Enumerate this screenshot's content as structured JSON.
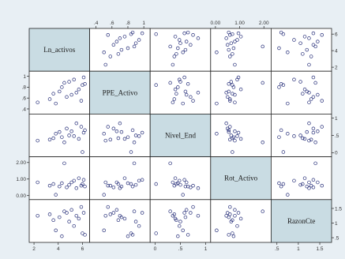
{
  "chart_data": {
    "type": "scatter",
    "subtype": "scatterplot-matrix",
    "variables": [
      "Ln_activos",
      "PPE_Activo",
      "Nivel_End",
      "Rot_Activo",
      "RazonCte"
    ],
    "axes": {
      "Ln_activos": {
        "range": [
          1.8,
          6.4
        ],
        "ticks": [
          {
            "v": 2,
            "t": "2"
          },
          {
            "v": 4,
            "t": "4"
          },
          {
            "v": 6,
            "t": "6"
          }
        ],
        "tick_side": "bottom"
      },
      "PPE_Activo": {
        "range": [
          0.35,
          1.05
        ],
        "ticks": [
          {
            "v": 0.4,
            "t": ".4"
          },
          {
            "v": 0.6,
            "t": ".6"
          },
          {
            "v": 0.8,
            "t": ".8"
          },
          {
            "v": 1.0,
            "t": "1"
          }
        ],
        "tick_side": "top"
      },
      "Nivel_End": {
        "range": [
          -0.05,
          1.05
        ],
        "ticks": [
          {
            "v": 0,
            "t": "0"
          },
          {
            "v": 0.5,
            "t": ".5"
          },
          {
            "v": 1,
            "t": "1"
          }
        ],
        "tick_side": "bottom"
      },
      "Rot_Activo": {
        "range": [
          -0.1,
          2.2
        ],
        "ticks": [
          {
            "v": 0,
            "t": "0.00"
          },
          {
            "v": 1,
            "t": "1.00"
          },
          {
            "v": 2,
            "t": "2.00"
          }
        ],
        "tick_side": "top"
      },
      "RazonCte": {
        "range": [
          0.42,
          1.72
        ],
        "ticks": [
          {
            "v": 0.5,
            "t": ".5"
          },
          {
            "v": 1.0,
            "t": "1"
          },
          {
            "v": 1.5,
            "t": "1.5"
          }
        ],
        "tick_side": "bottom"
      }
    },
    "observations": [
      {
        "Ln_activos": 2.3,
        "PPE_Activo": 0.52,
        "Nivel_End": 0.35,
        "Rot_Activo": 0.8,
        "RazonCte": 1.25
      },
      {
        "Ln_activos": 3.3,
        "PPE_Activo": 0.58,
        "Nivel_End": 0.38,
        "Rot_Activo": 0.6,
        "RazonCte": 1.3
      },
      {
        "Ln_activos": 3.6,
        "PPE_Activo": 0.68,
        "Nivel_End": 0.42,
        "Rot_Activo": 0.7,
        "RazonCte": 1.1
      },
      {
        "Ln_activos": 3.8,
        "PPE_Activo": 0.5,
        "Nivel_End": 0.55,
        "Rot_Activo": 0.05,
        "RazonCte": 0.75
      },
      {
        "Ln_activos": 4.1,
        "PPE_Activo": 0.72,
        "Nivel_End": 0.6,
        "Rot_Activo": 0.55,
        "RazonCte": 1.2
      },
      {
        "Ln_activos": 4.3,
        "PPE_Activo": 0.8,
        "Nivel_End": 0.45,
        "Rot_Activo": 0.75,
        "RazonCte": 0.55
      },
      {
        "Ln_activos": 4.5,
        "PPE_Activo": 0.88,
        "Nivel_End": 0.3,
        "Rot_Activo": 1.95,
        "RazonCte": 1.4
      },
      {
        "Ln_activos": 4.7,
        "PPE_Activo": 0.62,
        "Nivel_End": 0.7,
        "Rot_Activo": 0.5,
        "RazonCte": 1.35
      },
      {
        "Ln_activos": 4.9,
        "PPE_Activo": 0.9,
        "Nivel_End": 0.5,
        "Rot_Activo": 0.65,
        "RazonCte": 1.05
      },
      {
        "Ln_activos": 5.1,
        "PPE_Activo": 0.66,
        "Nivel_End": 0.62,
        "Rot_Activo": 0.8,
        "RazonCte": 1.45
      },
      {
        "Ln_activos": 5.3,
        "PPE_Activo": 0.94,
        "Nivel_End": 0.48,
        "Rot_Activo": 0.9,
        "RazonCte": 0.9
      },
      {
        "Ln_activos": 5.5,
        "PPE_Activo": 0.7,
        "Nivel_End": 0.85,
        "Rot_Activo": 0.45,
        "RazonCte": 1.25
      },
      {
        "Ln_activos": 5.7,
        "PPE_Activo": 0.76,
        "Nivel_End": 0.4,
        "Rot_Activo": 1.05,
        "RazonCte": 1.15
      },
      {
        "Ln_activos": 5.9,
        "PPE_Activo": 0.55,
        "Nivel_End": 0.75,
        "Rot_Activo": 0.6,
        "RazonCte": 1.55
      },
      {
        "Ln_activos": 6.0,
        "PPE_Activo": 0.84,
        "Nivel_End": 0.02,
        "Rot_Activo": 0.7,
        "RazonCte": 0.65
      },
      {
        "Ln_activos": 6.1,
        "PPE_Activo": 0.98,
        "Nivel_End": 0.58,
        "Rot_Activo": 0.95,
        "RazonCte": 1.35
      },
      {
        "Ln_activos": 6.2,
        "PPE_Activo": 0.86,
        "Nivel_End": 0.65,
        "Rot_Activo": 0.55,
        "RazonCte": 0.6
      }
    ],
    "grid": false,
    "legend": "none"
  },
  "colors": {
    "background": "#e8eff4",
    "panel": "#ffffff",
    "diagonal": "#c9dce3",
    "marker": "#28307a",
    "border": "#222222"
  }
}
